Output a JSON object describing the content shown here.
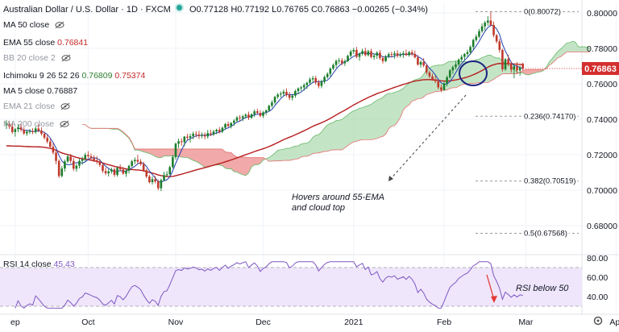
{
  "header": {
    "symbol": "Australian Dollar / U.S. Dollar · 1D · FXCM",
    "ohlc": "O0.77128 H0.77192 L0.76765 C0.76863 −0.00265 (−0.34%)"
  },
  "indicators": [
    {
      "label": "MA 50 close",
      "value": "",
      "muted": false
    },
    {
      "label": "EMA 55 close",
      "value": "0.76841",
      "muted": false
    },
    {
      "label": "BB 20 close 2",
      "value": "",
      "muted": true
    },
    {
      "label": "Ichimoku 9 26 52 26",
      "value": "0.76809",
      "value2": "0.75374",
      "muted": false
    },
    {
      "label": "MA 5 close",
      "value": "0.76887",
      "muted": false
    },
    {
      "label": "EMA 21 close",
      "value": "",
      "muted": true
    },
    {
      "label": "MA 200 close",
      "value": "",
      "muted": true
    }
  ],
  "colors": {
    "up": "#1b7d2c",
    "down": "#c0392b",
    "ema55": "#b71c1c",
    "ma5": "#1e40af",
    "cloud_bull": "#a5d6a7",
    "cloud_bear": "#ef9a9a",
    "rsi": "#7e57c2",
    "rsi_band": "#efe6fb",
    "price_badge": "#d32f2f"
  },
  "chart_data": {
    "type": "candlestick",
    "title": "Australian Dollar / U.S. Dollar · 1D · FXCM",
    "ylim": [
      0.665,
      0.805
    ],
    "y_ticks": [
      "0.80000",
      "0.78000",
      "0.76000",
      "0.74000",
      "0.72000",
      "0.70000",
      "0.68000"
    ],
    "last_price": "0.76863",
    "x_labels": [
      {
        "label": "ep",
        "day": 3
      },
      {
        "label": "Oct",
        "day": 28
      },
      {
        "label": "Nov",
        "day": 58
      },
      {
        "label": "Dec",
        "day": 88
      },
      {
        "label": "2021",
        "day": 119
      },
      {
        "label": "Feb",
        "day": 150
      },
      {
        "label": "Mar",
        "day": 178
      },
      {
        "label": "Apr",
        "day": 209
      }
    ],
    "candles": [
      [
        0.7365,
        0.7395,
        0.7345,
        0.7375
      ],
      [
        0.7375,
        0.7392,
        0.7345,
        0.7358
      ],
      [
        0.7358,
        0.738,
        0.7317,
        0.7328
      ],
      [
        0.7328,
        0.7352,
        0.7302,
        0.7344
      ],
      [
        0.7344,
        0.7374,
        0.7326,
        0.7354
      ],
      [
        0.7354,
        0.7377,
        0.733,
        0.7341
      ],
      [
        0.7341,
        0.7356,
        0.7312,
        0.732
      ],
      [
        0.732,
        0.7338,
        0.7306,
        0.733
      ],
      [
        0.733,
        0.7345,
        0.7317,
        0.7333
      ],
      [
        0.7333,
        0.735,
        0.7316,
        0.7328
      ],
      [
        0.7328,
        0.7358,
        0.7318,
        0.7348
      ],
      [
        0.7348,
        0.7373,
        0.7326,
        0.7336
      ],
      [
        0.7336,
        0.7354,
        0.7308,
        0.7318
      ],
      [
        0.7318,
        0.733,
        0.7286,
        0.7296
      ],
      [
        0.7296,
        0.7312,
        0.7264,
        0.7274
      ],
      [
        0.7274,
        0.7291,
        0.7233,
        0.7245
      ],
      [
        0.7245,
        0.7266,
        0.7201,
        0.7212
      ],
      [
        0.7212,
        0.7228,
        0.7146,
        0.7165
      ],
      [
        0.7165,
        0.7174,
        0.7069,
        0.708
      ],
      [
        0.708,
        0.7136,
        0.7072,
        0.7122
      ],
      [
        0.7122,
        0.7173,
        0.7105,
        0.7162
      ],
      [
        0.7162,
        0.7203,
        0.7154,
        0.719
      ],
      [
        0.719,
        0.7204,
        0.7152,
        0.7165
      ],
      [
        0.7165,
        0.7182,
        0.7108,
        0.7121
      ],
      [
        0.7121,
        0.7148,
        0.7104,
        0.7138
      ],
      [
        0.7138,
        0.7178,
        0.7123,
        0.7165
      ],
      [
        0.7165,
        0.7189,
        0.7143,
        0.7175
      ],
      [
        0.7175,
        0.7211,
        0.7164,
        0.7199
      ],
      [
        0.7199,
        0.722,
        0.7179,
        0.7191
      ],
      [
        0.7191,
        0.7207,
        0.7171,
        0.718
      ],
      [
        0.718,
        0.7197,
        0.7159,
        0.7169
      ],
      [
        0.7169,
        0.7192,
        0.7147,
        0.7162
      ],
      [
        0.7162,
        0.7176,
        0.7132,
        0.7142
      ],
      [
        0.7142,
        0.7157,
        0.7097,
        0.7108
      ],
      [
        0.7108,
        0.7128,
        0.7084,
        0.7095
      ],
      [
        0.7095,
        0.7118,
        0.7077,
        0.7106
      ],
      [
        0.7106,
        0.7128,
        0.7093,
        0.7117
      ],
      [
        0.7117,
        0.7127,
        0.7075,
        0.7086
      ],
      [
        0.7086,
        0.7135,
        0.7076,
        0.7126
      ],
      [
        0.7126,
        0.7145,
        0.7106,
        0.7117
      ],
      [
        0.7117,
        0.7131,
        0.7087,
        0.7093
      ],
      [
        0.7093,
        0.712,
        0.7075,
        0.711
      ],
      [
        0.711,
        0.7144,
        0.7094,
        0.7137
      ],
      [
        0.7137,
        0.7171,
        0.7129,
        0.7163
      ],
      [
        0.7163,
        0.7185,
        0.7147,
        0.7171
      ],
      [
        0.7171,
        0.7199,
        0.715,
        0.7161
      ],
      [
        0.7161,
        0.7175,
        0.7138,
        0.7147
      ],
      [
        0.7147,
        0.716,
        0.7103,
        0.7112
      ],
      [
        0.7112,
        0.7121,
        0.7067,
        0.7077
      ],
      [
        0.7077,
        0.7087,
        0.7038,
        0.7045
      ],
      [
        0.7045,
        0.7077,
        0.7031,
        0.7062
      ],
      [
        0.7062,
        0.708,
        0.7038,
        0.7049
      ],
      [
        0.7049,
        0.706,
        0.7,
        0.7011
      ],
      [
        0.7011,
        0.7065,
        0.6995,
        0.7057
      ],
      [
        0.7057,
        0.7104,
        0.705,
        0.7085
      ],
      [
        0.7085,
        0.7107,
        0.7076,
        0.709
      ],
      [
        0.709,
        0.7139,
        0.7083,
        0.713
      ],
      [
        0.713,
        0.7199,
        0.7122,
        0.7186
      ],
      [
        0.7186,
        0.7268,
        0.7172,
        0.7262
      ],
      [
        0.7262,
        0.7291,
        0.7238,
        0.7276
      ],
      [
        0.7276,
        0.7292,
        0.7251,
        0.7271
      ],
      [
        0.7271,
        0.7306,
        0.7247,
        0.7302
      ],
      [
        0.7302,
        0.7318,
        0.7283,
        0.7296
      ],
      [
        0.7296,
        0.7319,
        0.7269,
        0.7305
      ],
      [
        0.7305,
        0.733,
        0.7287,
        0.7318
      ],
      [
        0.7318,
        0.7333,
        0.7298,
        0.7314
      ],
      [
        0.7314,
        0.7335,
        0.7289,
        0.7306
      ],
      [
        0.7306,
        0.7326,
        0.7293,
        0.7311
      ],
      [
        0.7311,
        0.7326,
        0.7287,
        0.7303
      ],
      [
        0.7303,
        0.734,
        0.7291,
        0.7322
      ],
      [
        0.7322,
        0.7341,
        0.7305,
        0.7316
      ],
      [
        0.7316,
        0.7341,
        0.7306,
        0.7331
      ],
      [
        0.7331,
        0.7347,
        0.7316,
        0.7341
      ],
      [
        0.7341,
        0.7356,
        0.732,
        0.733
      ],
      [
        0.733,
        0.7359,
        0.7322,
        0.7352
      ],
      [
        0.7352,
        0.7379,
        0.7341,
        0.7373
      ],
      [
        0.7373,
        0.7387,
        0.7355,
        0.7362
      ],
      [
        0.7362,
        0.7384,
        0.7348,
        0.7379
      ],
      [
        0.7379,
        0.74,
        0.7363,
        0.7392
      ],
      [
        0.7392,
        0.7418,
        0.7381,
        0.741
      ],
      [
        0.741,
        0.7423,
        0.7389,
        0.7406
      ],
      [
        0.7406,
        0.7425,
        0.7389,
        0.7417
      ],
      [
        0.7417,
        0.7434,
        0.7404,
        0.7426
      ],
      [
        0.7426,
        0.7443,
        0.7396,
        0.7409
      ],
      [
        0.7409,
        0.7434,
        0.7401,
        0.7428
      ],
      [
        0.7428,
        0.7455,
        0.7413,
        0.7445
      ],
      [
        0.7445,
        0.746,
        0.7431,
        0.7436
      ],
      [
        0.7436,
        0.7451,
        0.7411,
        0.7419
      ],
      [
        0.7419,
        0.7447,
        0.7407,
        0.7439
      ],
      [
        0.7439,
        0.7456,
        0.7424,
        0.745
      ],
      [
        0.745,
        0.7483,
        0.7443,
        0.7476
      ],
      [
        0.7476,
        0.7507,
        0.7466,
        0.7495
      ],
      [
        0.7495,
        0.7533,
        0.7484,
        0.7526
      ],
      [
        0.7526,
        0.7548,
        0.7515,
        0.7539
      ],
      [
        0.7539,
        0.7557,
        0.7523,
        0.7544
      ],
      [
        0.7544,
        0.7568,
        0.7529,
        0.7555
      ],
      [
        0.7555,
        0.7574,
        0.7526,
        0.7537
      ],
      [
        0.7537,
        0.7554,
        0.7508,
        0.7521
      ],
      [
        0.7521,
        0.7544,
        0.7505,
        0.7533
      ],
      [
        0.7533,
        0.7568,
        0.7521,
        0.7559
      ],
      [
        0.7559,
        0.758,
        0.7542,
        0.7574
      ],
      [
        0.7574,
        0.7589,
        0.756,
        0.758
      ],
      [
        0.758,
        0.7603,
        0.7561,
        0.7593
      ],
      [
        0.7593,
        0.7612,
        0.7571,
        0.7606
      ],
      [
        0.7606,
        0.7636,
        0.7596,
        0.7625
      ],
      [
        0.7625,
        0.7645,
        0.7606,
        0.7632
      ],
      [
        0.7632,
        0.7645,
        0.7595,
        0.7607
      ],
      [
        0.7607,
        0.7623,
        0.7574,
        0.7588
      ],
      [
        0.7588,
        0.7624,
        0.7575,
        0.7612
      ],
      [
        0.7612,
        0.7647,
        0.76,
        0.7638
      ],
      [
        0.7638,
        0.7665,
        0.7629,
        0.7656
      ],
      [
        0.7656,
        0.7693,
        0.7641,
        0.7686
      ],
      [
        0.7686,
        0.7715,
        0.7677,
        0.7706
      ],
      [
        0.7706,
        0.7737,
        0.769,
        0.7729
      ],
      [
        0.7729,
        0.7746,
        0.7712,
        0.7732
      ],
      [
        0.7732,
        0.7745,
        0.7705,
        0.7716
      ],
      [
        0.7716,
        0.7738,
        0.7701,
        0.7728
      ],
      [
        0.7728,
        0.7764,
        0.7723,
        0.7758
      ],
      [
        0.7758,
        0.7792,
        0.7749,
        0.7782
      ],
      [
        0.7782,
        0.7803,
        0.7768,
        0.7791
      ],
      [
        0.7791,
        0.7808,
        0.7744,
        0.7752
      ],
      [
        0.7752,
        0.7776,
        0.773,
        0.7769
      ],
      [
        0.7769,
        0.7798,
        0.776,
        0.7785
      ],
      [
        0.7785,
        0.7803,
        0.7754,
        0.7762
      ],
      [
        0.7762,
        0.7792,
        0.7754,
        0.7784
      ],
      [
        0.7784,
        0.7798,
        0.7743,
        0.7751
      ],
      [
        0.7751,
        0.7772,
        0.7735,
        0.7759
      ],
      [
        0.7759,
        0.7784,
        0.7741,
        0.7776
      ],
      [
        0.7776,
        0.7791,
        0.7734,
        0.7745
      ],
      [
        0.7745,
        0.7757,
        0.7714,
        0.7728
      ],
      [
        0.7728,
        0.7763,
        0.7722,
        0.7754
      ],
      [
        0.7754,
        0.7777,
        0.7744,
        0.7767
      ],
      [
        0.7767,
        0.7781,
        0.775,
        0.7763
      ],
      [
        0.7763,
        0.7785,
        0.7742,
        0.7772
      ],
      [
        0.7772,
        0.779,
        0.7747,
        0.7758
      ],
      [
        0.7758,
        0.7778,
        0.7749,
        0.7764
      ],
      [
        0.7764,
        0.7785,
        0.7746,
        0.7772
      ],
      [
        0.7772,
        0.7793,
        0.7757,
        0.7762
      ],
      [
        0.7762,
        0.7786,
        0.7753,
        0.7778
      ],
      [
        0.7778,
        0.7792,
        0.7757,
        0.7768
      ],
      [
        0.7768,
        0.7787,
        0.7743,
        0.7749
      ],
      [
        0.7749,
        0.7763,
        0.7702,
        0.7708
      ],
      [
        0.7708,
        0.7733,
        0.7691,
        0.7723
      ],
      [
        0.7723,
        0.7745,
        0.7693,
        0.7703
      ],
      [
        0.7703,
        0.7712,
        0.7652,
        0.7664
      ],
      [
        0.7664,
        0.7675,
        0.7632,
        0.7642
      ],
      [
        0.7642,
        0.7658,
        0.7617,
        0.7625
      ],
      [
        0.7625,
        0.7645,
        0.7604,
        0.7614
      ],
      [
        0.7614,
        0.7624,
        0.7569,
        0.758
      ],
      [
        0.758,
        0.7596,
        0.7552,
        0.7565
      ],
      [
        0.7565,
        0.7611,
        0.7561,
        0.7602
      ],
      [
        0.7602,
        0.7647,
        0.7586,
        0.7637
      ],
      [
        0.7637,
        0.7683,
        0.7629,
        0.7676
      ],
      [
        0.7676,
        0.7703,
        0.7656,
        0.7694
      ],
      [
        0.7694,
        0.7726,
        0.7681,
        0.7709
      ],
      [
        0.7709,
        0.7743,
        0.7699,
        0.7737
      ],
      [
        0.7737,
        0.7764,
        0.7726,
        0.7752
      ],
      [
        0.7752,
        0.7774,
        0.7734,
        0.7768
      ],
      [
        0.7768,
        0.7792,
        0.7752,
        0.7779
      ],
      [
        0.7779,
        0.7817,
        0.7764,
        0.7808
      ],
      [
        0.7808,
        0.7855,
        0.7793,
        0.7847
      ],
      [
        0.7847,
        0.7879,
        0.7838,
        0.7866
      ],
      [
        0.7866,
        0.791,
        0.7857,
        0.7897
      ],
      [
        0.7897,
        0.7941,
        0.7887,
        0.7924
      ],
      [
        0.7924,
        0.7955,
        0.7902,
        0.7945
      ],
      [
        0.7945,
        0.7982,
        0.7928,
        0.7957
      ],
      [
        0.7957,
        0.8007,
        0.7923,
        0.7932
      ],
      [
        0.7932,
        0.7951,
        0.7862,
        0.7874
      ],
      [
        0.7874,
        0.7881,
        0.7828,
        0.7839
      ],
      [
        0.7839,
        0.7853,
        0.7776,
        0.7791
      ],
      [
        0.7791,
        0.7798,
        0.7669,
        0.7682
      ],
      [
        0.7682,
        0.7745,
        0.7673,
        0.7739
      ],
      [
        0.7739,
        0.7764,
        0.7699,
        0.7712
      ],
      [
        0.7712,
        0.7727,
        0.7663,
        0.768
      ],
      [
        0.768,
        0.7713,
        0.7631,
        0.7699
      ],
      [
        0.7699,
        0.7722,
        0.7658,
        0.7675
      ],
      [
        0.7675,
        0.7703,
        0.7646,
        0.7691
      ],
      [
        0.7713,
        0.7719,
        0.7677,
        0.7686
      ]
    ],
    "fib_levels": [
      {
        "label": "0(0.80072)",
        "price": 0.80072
      },
      {
        "label": "0.236(0.74170)",
        "price": 0.7417
      },
      {
        "label": "0.382(0.70519)",
        "price": 0.70519
      },
      {
        "label": "0.5(0.67568)",
        "price": 0.67568
      }
    ],
    "annotations": [
      "Hovers around 55-EMA",
      "and cloud top"
    ],
    "rsi": {
      "label": "RSI 14 close",
      "value": "45.43",
      "ylim": [
        25,
        80
      ],
      "band": [
        30,
        70
      ],
      "y_ticks": [
        "80.00",
        "60.00",
        "40.00"
      ],
      "annotation": "RSI below 50"
    }
  }
}
